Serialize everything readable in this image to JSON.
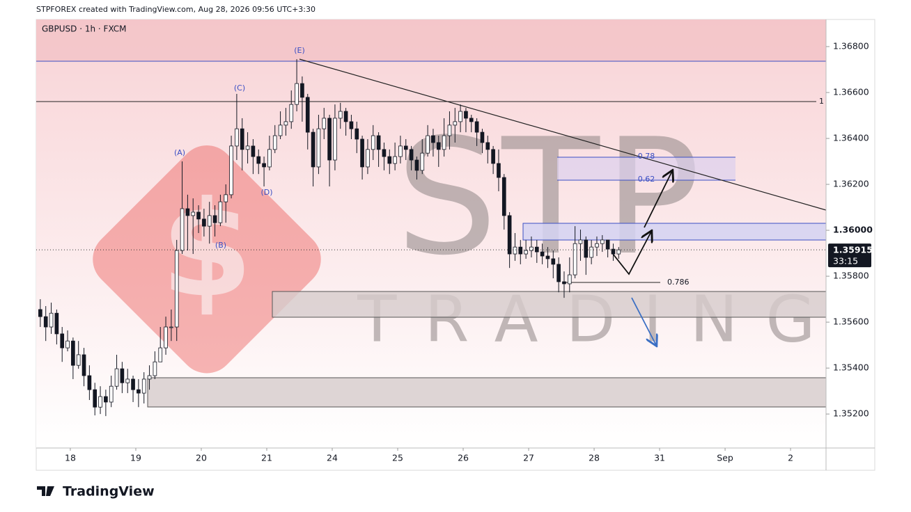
{
  "header": {
    "credit": "STPFOREX created with TradingView.com, Aug 28, 2026 09:56 UTC+3:30",
    "brand": "TradingView"
  },
  "watermark": {
    "big": "STP",
    "small": "TRADING"
  },
  "chart_data": {
    "type": "candlestick",
    "title": "GBPUSD · 1h · FXCM",
    "up_color": "#ffffff",
    "down_color": "#131722",
    "outline_color": "#131722",
    "xlim": [
      -0.25,
      144.5
    ],
    "xticks": [
      {
        "value": 6,
        "label": "18"
      },
      {
        "value": 18,
        "label": "19"
      },
      {
        "value": 30,
        "label": "20"
      },
      {
        "value": 42,
        "label": "21"
      },
      {
        "value": 54,
        "label": "24"
      },
      {
        "value": 66,
        "label": "25"
      },
      {
        "value": 78,
        "label": "26"
      },
      {
        "value": 90,
        "label": "27"
      },
      {
        "value": 102,
        "label": "28"
      },
      {
        "value": 114,
        "label": "31"
      },
      {
        "value": 126,
        "label": "Sep"
      },
      {
        "value": 138,
        "label": "2"
      }
    ],
    "ylim": [
      1.35052,
      1.36918
    ],
    "yticks": [
      {
        "value": 1.352,
        "label": "1.35200"
      },
      {
        "value": 1.354,
        "label": "1.35400"
      },
      {
        "value": 1.356,
        "label": "1.35600"
      },
      {
        "value": 1.358,
        "label": "1.35800"
      },
      {
        "value": 1.36,
        "label": "1.36000"
      },
      {
        "value": 1.362,
        "label": "1.36200"
      },
      {
        "value": 1.364,
        "label": "1.36400"
      },
      {
        "value": 1.366,
        "label": "1.36600"
      },
      {
        "value": 1.368,
        "label": "1.36800"
      }
    ],
    "last_price": 1.35915,
    "countdown": "33:15",
    "annotations": [
      "(A)",
      "(B)",
      "(C)",
      "(D)",
      "(E)",
      "1",
      "0.78",
      "0.62",
      "0.786"
    ],
    "open": [
      1.35655,
      1.35624,
      1.35579,
      1.35639,
      1.35549,
      1.35488,
      1.35518,
      1.35412,
      1.35458,
      1.35367,
      1.35306,
      1.3523,
      1.35276,
      1.35252,
      1.35321,
      1.35397,
      1.35336,
      1.35352,
      1.35306,
      1.35291,
      1.35352,
      1.35367,
      1.35427,
      1.35488,
      1.35579,
      1.35579,
      1.35912,
      1.36094,
      1.36064,
      1.36079,
      1.36049,
      1.36018,
      1.36064,
      1.36033,
      1.36124,
      1.36155,
      1.36367,
      1.36442,
      1.36352,
      1.36367,
      1.36321,
      1.36291,
      1.36276,
      1.36352,
      1.36412,
      1.36458,
      1.36473,
      1.36548,
      1.36639,
      1.36579,
      1.36427,
      1.36276,
      1.36442,
      1.36488,
      1.36306,
      1.36488,
      1.36518,
      1.36473,
      1.36442,
      1.36397,
      1.36276,
      1.36352,
      1.36412,
      1.36352,
      1.36321,
      1.36291,
      1.36321,
      1.36367,
      1.36352,
      1.36306,
      1.36261,
      1.36336,
      1.36412,
      1.36382,
      1.36352,
      1.36412,
      1.36458,
      1.36473,
      1.36518,
      1.36488,
      1.36473,
      1.36427,
      1.36382,
      1.36352,
      1.36291,
      1.3623,
      1.36064,
      1.35897,
      1.35927,
      1.35897,
      1.35912,
      1.35927,
      1.35906,
      1.35888,
      1.35876,
      1.35852,
      1.35776,
      1.35767,
      1.35806,
      1.35942,
      1.35958,
      1.35882,
      1.35927,
      1.35942,
      1.35958,
      1.35918,
      1.35897
    ],
    "high": [
      1.357,
      1.3567,
      1.35685,
      1.35655,
      1.35579,
      1.35564,
      1.35533,
      1.35518,
      1.35488,
      1.35412,
      1.35336,
      1.35321,
      1.35306,
      1.35367,
      1.35458,
      1.35427,
      1.35397,
      1.35367,
      1.35352,
      1.35382,
      1.35412,
      1.35473,
      1.35579,
      1.35624,
      1.35655,
      1.35958,
      1.363,
      1.36155,
      1.36139,
      1.36109,
      1.36094,
      1.36124,
      1.36109,
      1.36155,
      1.362,
      1.36412,
      1.36594,
      1.36488,
      1.36427,
      1.36397,
      1.36352,
      1.36321,
      1.36412,
      1.36458,
      1.36518,
      1.36533,
      1.36609,
      1.36745,
      1.3667,
      1.36594,
      1.36442,
      1.36503,
      1.36533,
      1.36503,
      1.36548,
      1.36555,
      1.36533,
      1.36503,
      1.36473,
      1.36412,
      1.36397,
      1.36458,
      1.36427,
      1.36382,
      1.36352,
      1.36382,
      1.36412,
      1.36397,
      1.36367,
      1.36321,
      1.36397,
      1.36458,
      1.36442,
      1.36412,
      1.36488,
      1.36518,
      1.36533,
      1.36548,
      1.36533,
      1.36503,
      1.36488,
      1.36442,
      1.36412,
      1.36367,
      1.36352,
      1.36245,
      1.36079,
      1.35988,
      1.35958,
      1.35958,
      1.35973,
      1.35958,
      1.35942,
      1.35927,
      1.35912,
      1.35882,
      1.35821,
      1.35882,
      1.36018,
      1.36003,
      1.35973,
      1.35958,
      1.35973,
      1.35979,
      1.35958,
      1.35942,
      1.35927
    ],
    "low": [
      1.35579,
      1.35518,
      1.35549,
      1.35503,
      1.35427,
      1.35473,
      1.35352,
      1.35397,
      1.35321,
      1.35261,
      1.35194,
      1.352,
      1.35191,
      1.3523,
      1.35306,
      1.35291,
      1.35291,
      1.35252,
      1.3523,
      1.35246,
      1.35306,
      1.35352,
      1.35427,
      1.35458,
      1.35518,
      1.35518,
      1.35897,
      1.35912,
      1.35897,
      1.35988,
      1.35973,
      1.35942,
      1.35973,
      1.36018,
      1.36033,
      1.36139,
      1.36306,
      1.36261,
      1.36291,
      1.36245,
      1.36245,
      1.36191,
      1.36261,
      1.36336,
      1.36397,
      1.36412,
      1.36442,
      1.36518,
      1.36473,
      1.36352,
      1.36191,
      1.36245,
      1.36397,
      1.36191,
      1.36261,
      1.36442,
      1.36412,
      1.36397,
      1.36336,
      1.36221,
      1.36245,
      1.36306,
      1.36276,
      1.36261,
      1.36245,
      1.36261,
      1.36291,
      1.36306,
      1.36261,
      1.36221,
      1.36245,
      1.36321,
      1.36321,
      1.36276,
      1.36321,
      1.36352,
      1.36382,
      1.36427,
      1.36427,
      1.36427,
      1.36367,
      1.36336,
      1.36291,
      1.36245,
      1.3617,
      1.36003,
      1.35836,
      1.35867,
      1.35852,
      1.35876,
      1.35882,
      1.35858,
      1.35852,
      1.35836,
      1.35791,
      1.3573,
      1.35706,
      1.3573,
      1.35791,
      1.35867,
      1.35806,
      1.35852,
      1.35888,
      1.35906,
      1.35882,
      1.35867,
      1.35876
    ],
    "close": [
      1.35624,
      1.35579,
      1.35639,
      1.35549,
      1.35488,
      1.35518,
      1.35412,
      1.35458,
      1.35367,
      1.35306,
      1.3523,
      1.35276,
      1.35252,
      1.35321,
      1.35397,
      1.35336,
      1.35352,
      1.35306,
      1.35291,
      1.35352,
      1.35367,
      1.35427,
      1.35488,
      1.35579,
      1.35579,
      1.35912,
      1.36094,
      1.36064,
      1.36079,
      1.36049,
      1.36018,
      1.36064,
      1.36033,
      1.36124,
      1.36155,
      1.36367,
      1.36442,
      1.36352,
      1.36367,
      1.36321,
      1.36291,
      1.36276,
      1.36352,
      1.36412,
      1.36458,
      1.36473,
      1.36548,
      1.36639,
      1.36579,
      1.36427,
      1.36276,
      1.36442,
      1.36488,
      1.36306,
      1.36488,
      1.36518,
      1.36473,
      1.36442,
      1.36397,
      1.36276,
      1.36352,
      1.36412,
      1.36352,
      1.36321,
      1.36291,
      1.36321,
      1.36367,
      1.36352,
      1.36306,
      1.36261,
      1.36336,
      1.36412,
      1.36382,
      1.36352,
      1.36412,
      1.36458,
      1.36473,
      1.36518,
      1.36488,
      1.36473,
      1.36427,
      1.36382,
      1.36352,
      1.36291,
      1.3623,
      1.36064,
      1.35897,
      1.35927,
      1.35897,
      1.35912,
      1.35927,
      1.35906,
      1.35888,
      1.35876,
      1.35852,
      1.35776,
      1.35767,
      1.35806,
      1.35942,
      1.35958,
      1.35882,
      1.35927,
      1.35942,
      1.35958,
      1.35918,
      1.35897,
      1.35915
    ]
  }
}
